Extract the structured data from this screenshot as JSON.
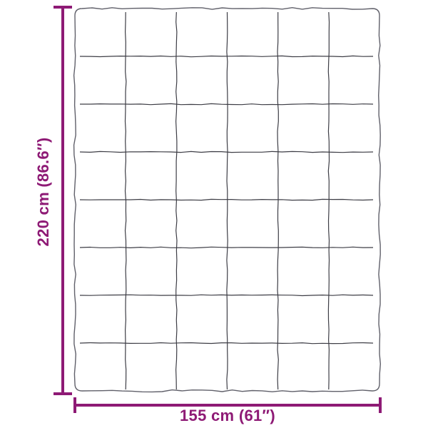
{
  "diagram": {
    "type": "product-dimension-diagram",
    "subject": "quilted blanket with stitched grid pattern",
    "grid": {
      "rows": 8,
      "columns": 6
    },
    "dimensions": {
      "height": {
        "label": "220 cm (86.6″)"
      },
      "width": {
        "label": "155 cm (61″)"
      }
    },
    "colors": {
      "dimension_accent": "#8E1A75",
      "blanket_outline": "#60606a",
      "grid_line": "#3D3D45",
      "background": "#FFFFFF"
    }
  }
}
